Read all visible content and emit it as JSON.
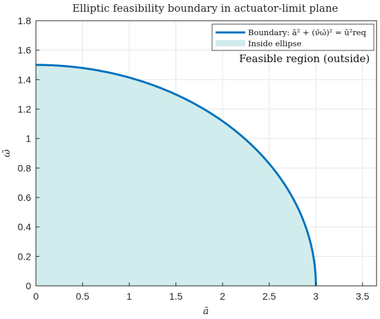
{
  "chart_data": {
    "type": "area",
    "title": "Elliptic feasibility boundary in actuator-limit plane",
    "xlabel": "ā",
    "ylabel": "ω̄",
    "xlim": [
      0,
      3.65
    ],
    "ylim": [
      0,
      1.8
    ],
    "xticks": [
      0,
      0.5,
      1,
      1.5,
      2,
      2.5,
      3,
      3.5
    ],
    "xtick_labels": [
      "0",
      "0.5",
      "1",
      "1.5",
      "2",
      "2.5",
      "3",
      "3.5"
    ],
    "yticks": [
      0,
      0.2,
      0.4,
      0.6,
      0.8,
      1,
      1.2,
      1.4,
      1.6,
      1.8
    ],
    "ytick_labels": [
      "0",
      "0.2",
      "0.4",
      "0.6",
      "0.8",
      "1",
      "1.2",
      "1.4",
      "1.6",
      "1.8"
    ],
    "grid": true,
    "legend_position": "top-right",
    "series": [
      {
        "name": "Boundary: ā² + (ν̄ω̄)² = ū²req",
        "kind": "line",
        "color": "#0072BD",
        "a_semi_axis": 3,
        "b_semi_axis": 1.5,
        "x": [
          0,
          0.5,
          1,
          1.5,
          2,
          2.5,
          2.8,
          2.95,
          3
        ],
        "y": [
          1.5,
          1.479,
          1.414,
          1.299,
          1.118,
          0.829,
          0.539,
          0.273,
          0
        ]
      },
      {
        "name": "Inside ellipse",
        "kind": "fill",
        "color": "#d1ecec"
      }
    ],
    "annotations": [
      {
        "text": "Feasible region (outside)"
      }
    ]
  },
  "colors": {
    "boundary": "#0072BD",
    "fill": "#d1ecec",
    "grid": "#e6e6e6",
    "axis": "#262626"
  }
}
